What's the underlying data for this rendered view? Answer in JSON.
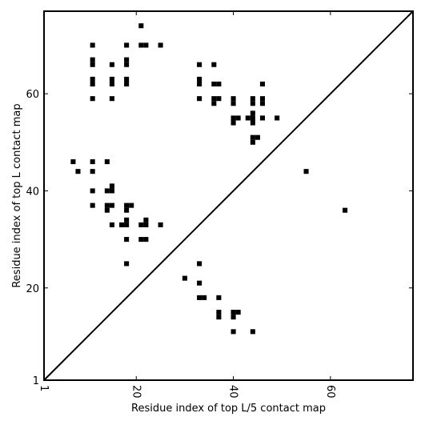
{
  "chart_data": {
    "type": "scatter",
    "xlabel": "Residue index of top L/5 contact map",
    "ylabel": "Residue index of top L contact map",
    "xlim": [
      1,
      77
    ],
    "ylim": [
      1,
      77
    ],
    "xticks": [
      1,
      20,
      40,
      60
    ],
    "yticks": [
      1,
      20,
      40,
      60
    ],
    "grid": false,
    "diagonal": true,
    "marker": "square",
    "color": "#000000",
    "points": [
      [
        21,
        74
      ],
      [
        11,
        70
      ],
      [
        18,
        70
      ],
      [
        21,
        70
      ],
      [
        22,
        70
      ],
      [
        25,
        70
      ],
      [
        11,
        67
      ],
      [
        11,
        66
      ],
      [
        15,
        66
      ],
      [
        18,
        67
      ],
      [
        18,
        66
      ],
      [
        33,
        66
      ],
      [
        36,
        66
      ],
      [
        11,
        63
      ],
      [
        11,
        62
      ],
      [
        15,
        63
      ],
      [
        15,
        62
      ],
      [
        18,
        63
      ],
      [
        18,
        62
      ],
      [
        33,
        63
      ],
      [
        33,
        62
      ],
      [
        36,
        62
      ],
      [
        37,
        62
      ],
      [
        46,
        62
      ],
      [
        11,
        59
      ],
      [
        15,
        59
      ],
      [
        33,
        59
      ],
      [
        36,
        59
      ],
      [
        36,
        58
      ],
      [
        37,
        59
      ],
      [
        40,
        59
      ],
      [
        40,
        58
      ],
      [
        44,
        59
      ],
      [
        44,
        58
      ],
      [
        46,
        59
      ],
      [
        46,
        58
      ],
      [
        40,
        55
      ],
      [
        40,
        54
      ],
      [
        41,
        55
      ],
      [
        43,
        55
      ],
      [
        44,
        56
      ],
      [
        44,
        55
      ],
      [
        44,
        54
      ],
      [
        46,
        55
      ],
      [
        49,
        55
      ],
      [
        44,
        51
      ],
      [
        44,
        50
      ],
      [
        45,
        51
      ],
      [
        7,
        46
      ],
      [
        11,
        46
      ],
      [
        14,
        46
      ],
      [
        8,
        44
      ],
      [
        11,
        44
      ],
      [
        55,
        44
      ],
      [
        11,
        40
      ],
      [
        14,
        40
      ],
      [
        15,
        41
      ],
      [
        15,
        40
      ],
      [
        11,
        37
      ],
      [
        14,
        37
      ],
      [
        14,
        36
      ],
      [
        15,
        37
      ],
      [
        18,
        37
      ],
      [
        18,
        36
      ],
      [
        19,
        37
      ],
      [
        63,
        36
      ],
      [
        18,
        34
      ],
      [
        22,
        34
      ],
      [
        15,
        33
      ],
      [
        17,
        33
      ],
      [
        18,
        33
      ],
      [
        21,
        33
      ],
      [
        22,
        33
      ],
      [
        25,
        33
      ],
      [
        18,
        30
      ],
      [
        21,
        30
      ],
      [
        22,
        30
      ],
      [
        18,
        25
      ],
      [
        33,
        25
      ],
      [
        30,
        22
      ],
      [
        33,
        21
      ],
      [
        33,
        18
      ],
      [
        34,
        18
      ],
      [
        37,
        18
      ],
      [
        37,
        15
      ],
      [
        37,
        14
      ],
      [
        40,
        15
      ],
      [
        40,
        14
      ],
      [
        41,
        15
      ],
      [
        40,
        11
      ],
      [
        44,
        11
      ]
    ]
  }
}
